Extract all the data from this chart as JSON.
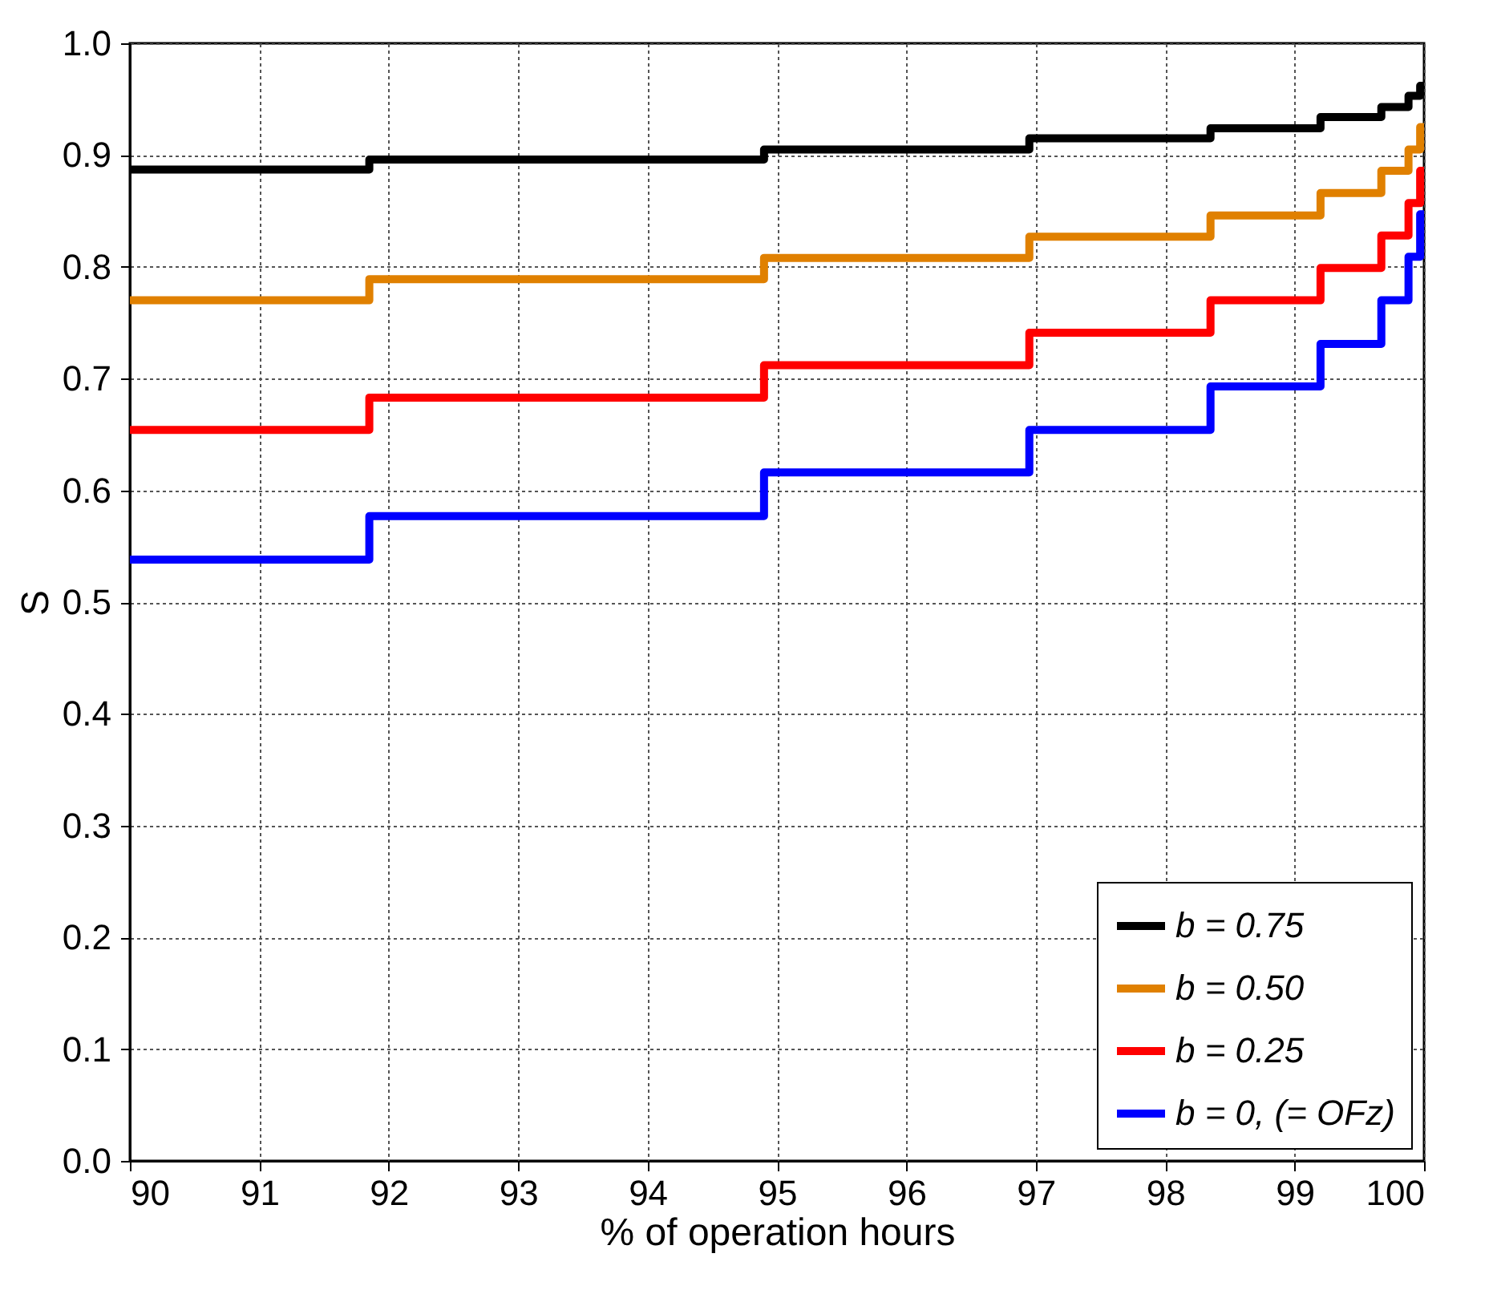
{
  "chart_data": {
    "type": "step",
    "xlabel": "% of operation hours",
    "ylabel": "S",
    "xlim": [
      90,
      100
    ],
    "ylim": [
      0,
      1
    ],
    "xticks": [
      90,
      91,
      92,
      93,
      94,
      95,
      96,
      97,
      98,
      99,
      100
    ],
    "yticks": [
      {
        "value": 0,
        "label": "0.0"
      },
      0.1,
      0.2,
      0.3,
      0.4,
      0.5,
      0.6,
      0.7,
      0.8,
      0.9,
      {
        "value": 1,
        "label": "1.0"
      }
    ],
    "grid": true,
    "legend": "bottom right",
    "line_style": "solid",
    "marker": "none",
    "series": [
      {
        "name": "b = 0.75",
        "color": "#000000",
        "x": [
          90,
          91.85,
          94.9,
          96.95,
          98.35,
          99.2,
          99.67,
          99.88,
          99.97,
          100
        ],
        "values": [
          0.887,
          0.896,
          0.905,
          0.915,
          0.924,
          0.934,
          0.943,
          0.953,
          0.962,
          0.962
        ]
      },
      {
        "name": "b = 0.50",
        "color": "#e08000",
        "x": [
          90,
          91.85,
          94.9,
          96.95,
          98.35,
          99.2,
          99.67,
          99.88,
          99.97,
          100
        ],
        "values": [
          0.77,
          0.789,
          0.808,
          0.827,
          0.846,
          0.866,
          0.886,
          0.905,
          0.925,
          0.925
        ]
      },
      {
        "name": "b = 0.25",
        "color": "#ff0000",
        "x": [
          90,
          91.85,
          94.9,
          96.95,
          98.35,
          99.2,
          99.67,
          99.88,
          99.97,
          100
        ],
        "values": [
          0.654,
          0.683,
          0.712,
          0.741,
          0.77,
          0.799,
          0.828,
          0.857,
          0.886,
          0.886
        ]
      },
      {
        "name": "b = 0, (= OFz)",
        "color": "#0000ff",
        "x": [
          90,
          91.85,
          94.9,
          96.95,
          98.35,
          99.2,
          99.67,
          99.88,
          99.97,
          100
        ],
        "values": [
          0.538,
          0.577,
          0.616,
          0.654,
          0.693,
          0.731,
          0.77,
          0.809,
          0.847,
          0.847
        ]
      }
    ]
  }
}
